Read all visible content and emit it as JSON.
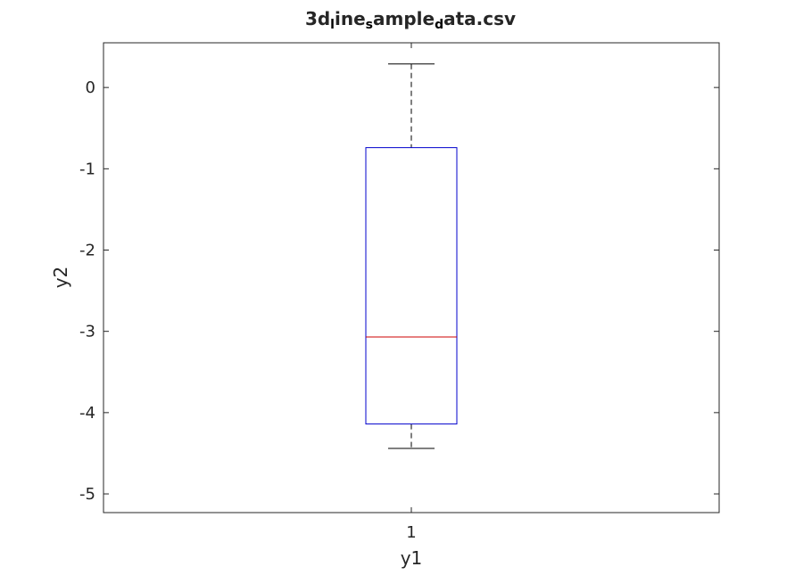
{
  "chart_data": {
    "type": "box",
    "title": {
      "segments": [
        {
          "text": "3d",
          "sub": false
        },
        {
          "text": "l",
          "sub": true
        },
        {
          "text": "ine",
          "sub": false
        },
        {
          "text": "s",
          "sub": true
        },
        {
          "text": "ample",
          "sub": false
        },
        {
          "text": "d",
          "sub": true
        },
        {
          "text": "ata.csv",
          "sub": false
        }
      ]
    },
    "xlabel": "y1",
    "ylabel": "y2",
    "categories": [
      "1"
    ],
    "ylim": [
      -5.23,
      0.55
    ],
    "yticks": [
      0,
      -1,
      -2,
      -3,
      -4,
      -5
    ],
    "ytick_labels": [
      "0",
      "-1",
      "-2",
      "-3",
      "-4",
      "-5"
    ],
    "boxes": [
      {
        "category": "1",
        "whisker_high": 0.29,
        "q3": -0.74,
        "median": -3.07,
        "q1": -4.14,
        "whisker_low": -4.44
      }
    ],
    "grid": false,
    "colors": {
      "box": "#0000cc",
      "median": "#cc0000",
      "whisker": "#000000",
      "axes": "#262626"
    }
  }
}
